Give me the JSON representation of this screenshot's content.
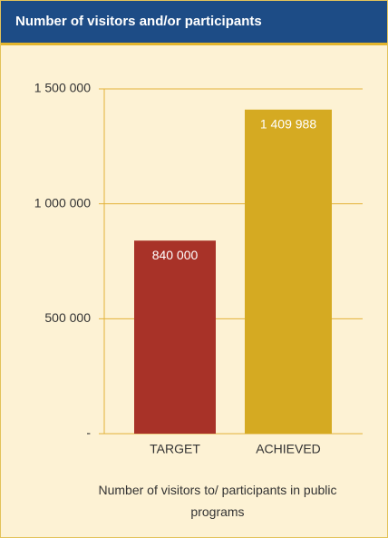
{
  "chart_data": {
    "type": "bar",
    "title": "Number of visitors and/or participants",
    "categories": [
      "TARGET",
      "ACHIEVED"
    ],
    "values": [
      840000,
      1409988
    ],
    "value_labels": [
      "840 000",
      "1 409 988"
    ],
    "colors": [
      "#a83228",
      "#d5aa22"
    ],
    "x_label": "Number of visitors to/ participants in public programs",
    "ylim": [
      0,
      1500000
    ],
    "yticks": [
      {
        "value": 0,
        "label": "-"
      },
      {
        "value": 500000,
        "label": "500 000"
      },
      {
        "value": 1000000,
        "label": "1 000 000"
      },
      {
        "value": 1500000,
        "label": "1 500 000"
      }
    ],
    "grid": true
  }
}
